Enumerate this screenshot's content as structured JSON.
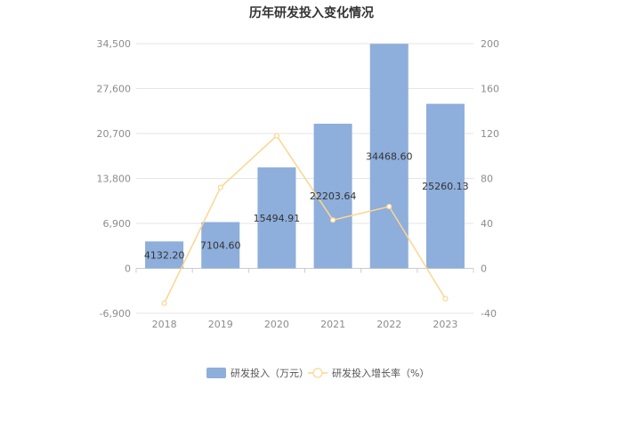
{
  "chart_data": {
    "type": "bar",
    "title": "历年研发投入变化情况",
    "categories": [
      "2018",
      "2019",
      "2020",
      "2021",
      "2022",
      "2023"
    ],
    "series": [
      {
        "name": "研发投入（万元）",
        "type": "bar",
        "axis": "left",
        "color": "#8eaedb",
        "values": [
          4132.2,
          7104.6,
          15494.91,
          22203.64,
          34468.6,
          25260.13
        ],
        "labels": [
          "4132.20",
          "7104.60",
          "15494.91",
          "22203.64",
          "34468.60",
          "25260.13"
        ]
      },
      {
        "name": "研发投入增长率（%）",
        "type": "line",
        "axis": "right",
        "color": "#fcd68f",
        "values": [
          -31,
          72,
          118,
          43,
          55,
          -27
        ]
      }
    ],
    "left_axis": {
      "ylim": [
        -6900,
        34500
      ],
      "ticks": [
        "34,500",
        "27,600",
        "20,700",
        "13,800",
        "6,900",
        "0",
        "-6,900"
      ]
    },
    "right_axis": {
      "ylim": [
        -40,
        200
      ],
      "ticks": [
        "200",
        "160",
        "120",
        "80",
        "40",
        "0",
        "-40"
      ]
    },
    "grid": true,
    "legend_position": "bottom"
  }
}
